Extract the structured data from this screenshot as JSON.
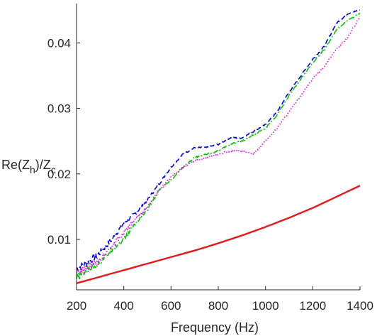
{
  "chart_data": {
    "type": "line",
    "xlabel": "Frequency (Hz)",
    "ylabel": {
      "base": "Re(Z",
      "sub1": "h",
      "mid": ")/Z",
      "sub2": "c"
    },
    "xlim": [
      200,
      1400
    ],
    "ylim": [
      0.0023,
      0.046
    ],
    "xticks": [
      200,
      400,
      600,
      800,
      1000,
      1200,
      1400
    ],
    "yticks": [
      0.01,
      0.02,
      0.03,
      0.04
    ],
    "ytick_labels": [
      "0.01",
      "0.02",
      "0.03",
      "0.04"
    ],
    "grid": false,
    "series": [
      {
        "color": "#0000ff",
        "style": "dashed",
        "noise": 0.0006,
        "x": [
          200,
          250,
          300,
          350,
          400,
          450,
          500,
          550,
          600,
          650,
          700,
          750,
          800,
          850,
          900,
          950,
          1000,
          1050,
          1100,
          1150,
          1200,
          1250,
          1300,
          1350,
          1400
        ],
        "y": [
          0.0055,
          0.0065,
          0.008,
          0.01,
          0.0125,
          0.014,
          0.016,
          0.0185,
          0.021,
          0.023,
          0.024,
          0.024,
          0.0245,
          0.0255,
          0.0255,
          0.0265,
          0.0275,
          0.0295,
          0.0325,
          0.035,
          0.0375,
          0.0395,
          0.043,
          0.0445,
          0.045
        ]
      },
      {
        "color": "#00cc00",
        "style": "dashdot",
        "noise": 0.0006,
        "x": [
          200,
          250,
          300,
          350,
          400,
          450,
          500,
          550,
          600,
          650,
          700,
          750,
          800,
          850,
          900,
          950,
          1000,
          1050,
          1100,
          1150,
          1200,
          1250,
          1300,
          1350,
          1400
        ],
        "y": [
          0.004,
          0.0055,
          0.0065,
          0.0085,
          0.01,
          0.0125,
          0.0145,
          0.0175,
          0.019,
          0.021,
          0.0225,
          0.023,
          0.0235,
          0.0245,
          0.025,
          0.026,
          0.027,
          0.029,
          0.032,
          0.0345,
          0.037,
          0.039,
          0.042,
          0.0435,
          0.0445
        ]
      },
      {
        "color": "#ff00ff",
        "style": "dotted",
        "noise": 0.0007,
        "x": [
          200,
          250,
          300,
          350,
          400,
          450,
          500,
          550,
          600,
          650,
          700,
          750,
          800,
          850,
          900,
          950,
          1000,
          1050,
          1100,
          1150,
          1200,
          1250,
          1300,
          1350,
          1400
        ],
        "y": [
          0.005,
          0.0055,
          0.007,
          0.009,
          0.011,
          0.013,
          0.015,
          0.0175,
          0.0195,
          0.021,
          0.022,
          0.0225,
          0.023,
          0.0235,
          0.0235,
          0.023,
          0.025,
          0.027,
          0.0295,
          0.032,
          0.0345,
          0.0365,
          0.039,
          0.041,
          0.044
        ]
      },
      {
        "color": "#e61919",
        "style": "solid",
        "noise": 0,
        "x": [
          200,
          300,
          400,
          500,
          600,
          700,
          800,
          900,
          1000,
          1100,
          1200,
          1300,
          1400
        ],
        "y": [
          0.0033,
          0.0043,
          0.0053,
          0.0063,
          0.0073,
          0.0083,
          0.0094,
          0.0106,
          0.0119,
          0.0133,
          0.0148,
          0.0165,
          0.0182
        ]
      }
    ]
  }
}
